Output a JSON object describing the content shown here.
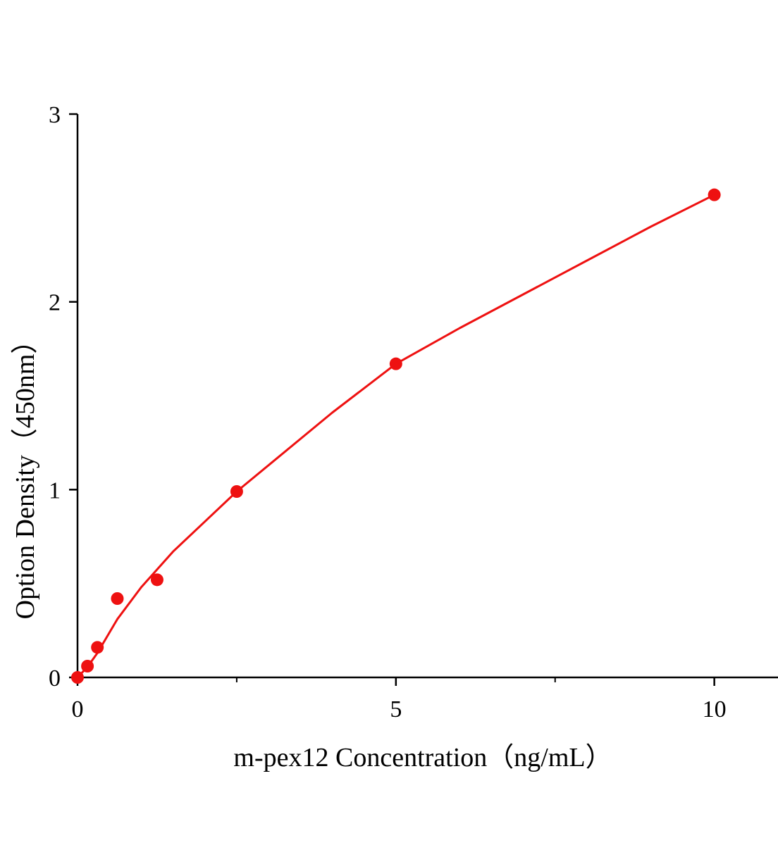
{
  "chart_data": {
    "type": "scatter",
    "x_label": "m-pex12 Concentration（ng/mL）",
    "y_label": "Option Density（450nm）",
    "xlim": [
      0,
      11
    ],
    "ylim": [
      0,
      3
    ],
    "xticks": [
      0,
      5,
      10
    ],
    "xminorticks": [
      2.5,
      7.5
    ],
    "yticks": [
      0,
      1,
      2,
      3
    ],
    "series": [
      {
        "name": "points",
        "kind": "scatter",
        "color": "#ee1111",
        "x": [
          0,
          0.156,
          0.312,
          0.625,
          1.25,
          2.5,
          5,
          10
        ],
        "values": [
          0,
          0.06,
          0.16,
          0.42,
          0.52,
          0.99,
          1.67,
          2.57
        ]
      },
      {
        "name": "fit",
        "kind": "line",
        "color": "#ee1111",
        "x": [
          0,
          0.156,
          0.312,
          0.625,
          1,
          1.5,
          2,
          2.5,
          3,
          4,
          5,
          6,
          7,
          8,
          9,
          10
        ],
        "values": [
          0,
          0.056,
          0.13,
          0.31,
          0.48,
          0.67,
          0.83,
          0.99,
          1.13,
          1.41,
          1.67,
          1.86,
          2.04,
          2.22,
          2.4,
          2.57
        ]
      }
    ]
  }
}
